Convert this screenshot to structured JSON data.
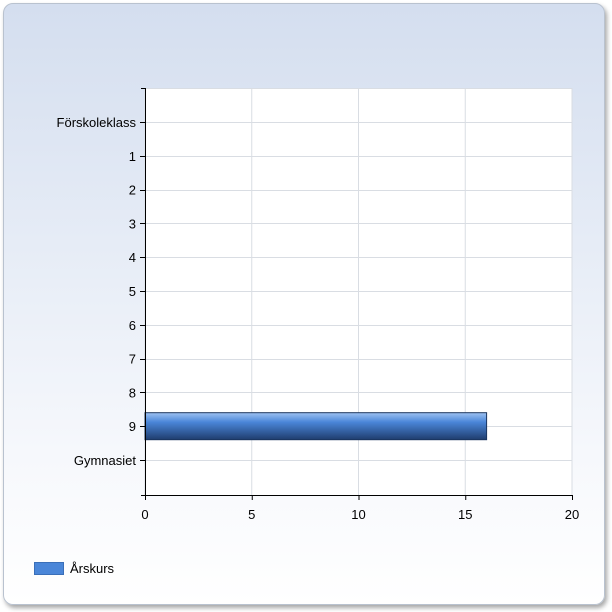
{
  "chart_data": {
    "type": "bar",
    "orientation": "horizontal",
    "categories": [
      "Förskoleklass",
      "1",
      "2",
      "3",
      "4",
      "5",
      "6",
      "7",
      "8",
      "9",
      "Gymnasiet"
    ],
    "series": [
      {
        "name": "Årskurs",
        "values": [
          0,
          0,
          0,
          0,
          0,
          0,
          0,
          0,
          0,
          16,
          0
        ]
      }
    ],
    "xlim": [
      0,
      20
    ],
    "xticks": [
      "0",
      "5",
      "10",
      "15",
      "20"
    ],
    "title": "",
    "xlabel": "",
    "ylabel": "",
    "grid": true,
    "legend_position": "bottom-left",
    "colors": {
      "bar": "#4a86d8",
      "bar_dark": "#1f3d6e",
      "grid": "#d9dde3",
      "axis": "#000000"
    }
  }
}
